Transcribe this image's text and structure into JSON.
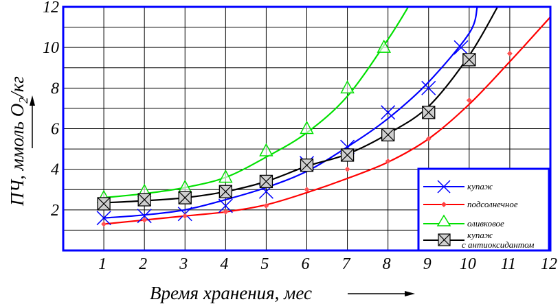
{
  "chart_data": {
    "type": "line",
    "title": "",
    "xlabel": "Время хранения, мес",
    "ylabel": "ПЧ, ммоль O₂/кг",
    "ylabel_parts": {
      "main": "ПЧ, ммоль O",
      "sub": "2",
      "rest": "/кг"
    },
    "xlim": [
      0,
      12
    ],
    "ylim": [
      0,
      12
    ],
    "x_ticks": [
      "1",
      "2",
      "3",
      "4",
      "5",
      "6",
      "7",
      "8",
      "9",
      "10",
      "11",
      "12"
    ],
    "y_ticks": [
      "2",
      "4",
      "6",
      "8",
      "10",
      "12"
    ],
    "grid": true,
    "legend_position": "lower-right",
    "series": [
      {
        "name": "купаж",
        "color": "#0000ff",
        "marker": "x-marker",
        "points_x": [
          1,
          2,
          3,
          4,
          5,
          6,
          7,
          8,
          9,
          9.8
        ],
        "points_y": [
          1.6,
          1.7,
          1.8,
          2.2,
          2.9,
          4.3,
          5.1,
          6.8,
          8.0,
          10.0
        ],
        "curve_x": [
          1,
          2,
          3,
          4,
          5,
          6,
          7,
          8,
          9,
          10,
          10.2
        ],
        "curve_y": [
          1.6,
          1.75,
          2.0,
          2.5,
          3.1,
          3.9,
          5.1,
          6.5,
          8.3,
          10.7,
          12.0
        ]
      },
      {
        "name": "подсолнечное",
        "color": "#ff0000",
        "marker": "diamond-marker",
        "points_x": [
          1,
          2,
          3,
          4,
          5,
          6,
          7,
          8,
          9,
          10,
          11
        ],
        "points_y": [
          1.3,
          1.5,
          1.7,
          1.9,
          2.2,
          3.0,
          4.0,
          4.4,
          5.5,
          7.4,
          9.7
        ],
        "curve_x": [
          1,
          2,
          3,
          4,
          5,
          6,
          7,
          8,
          9,
          10,
          11,
          12
        ],
        "curve_y": [
          1.3,
          1.5,
          1.7,
          1.9,
          2.25,
          2.85,
          3.55,
          4.35,
          5.5,
          7.2,
          9.3,
          11.5
        ]
      },
      {
        "name": "оливковое",
        "color": "#00e000",
        "marker": "triangle-marker",
        "points_x": [
          1,
          2,
          3,
          4,
          5,
          6,
          7,
          7.9
        ],
        "points_y": [
          2.6,
          2.9,
          3.1,
          3.6,
          4.9,
          6.0,
          8.0,
          10.0
        ],
        "curve_x": [
          1,
          2,
          3,
          4,
          5,
          6,
          7,
          8,
          8.5
        ],
        "curve_y": [
          2.6,
          2.8,
          3.1,
          3.6,
          4.6,
          5.8,
          7.6,
          10.4,
          12.0
        ]
      },
      {
        "name": "купаж с антиоксидантом",
        "name_line1": "купаж",
        "name_line2": "с антиоксидантом",
        "color": "#000000",
        "marker": "boxed-x-marker",
        "points_x": [
          1,
          2,
          3,
          4,
          5,
          6,
          7,
          8,
          9,
          10
        ],
        "points_y": [
          2.3,
          2.5,
          2.6,
          2.9,
          3.4,
          4.2,
          4.7,
          5.7,
          6.8,
          9.4
        ],
        "curve_x": [
          1,
          2,
          3,
          4,
          5,
          6,
          7,
          8,
          9,
          10,
          10.7
        ],
        "curve_y": [
          2.35,
          2.45,
          2.6,
          2.9,
          3.4,
          4.15,
          4.75,
          5.75,
          7.1,
          9.6,
          12.0
        ]
      }
    ]
  }
}
